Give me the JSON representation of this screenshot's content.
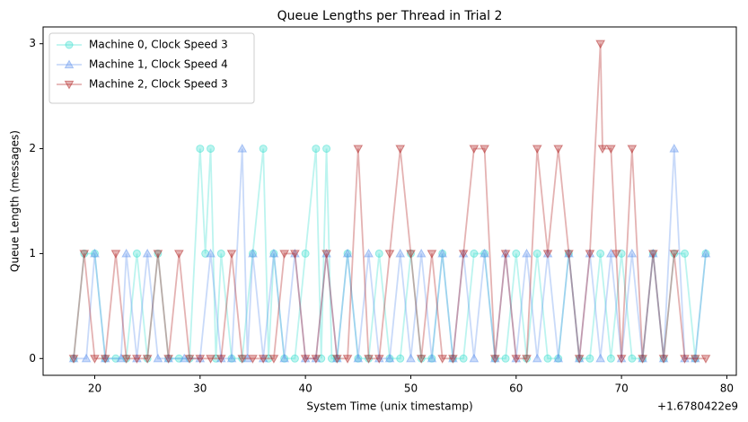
{
  "chart_data": {
    "type": "line",
    "title": "Queue Lengths per Thread in Trial 2",
    "x_label": "System Time (unix timestamp)",
    "y_label": "Queue Length (messages)",
    "x_offset_label": "+1.6780422e9",
    "xlim": [
      15.1,
      80.9
    ],
    "xticks": [
      20,
      30,
      40,
      50,
      60,
      70,
      80
    ],
    "ylim": [
      -0.16,
      3.16
    ],
    "yticks": [
      0,
      1,
      2,
      3
    ],
    "legend": "upper left",
    "series": [
      {
        "name": "Machine 0, Clock Speed 3",
        "color": "#40e0d0",
        "marker": "circle",
        "x": [
          18,
          19,
          20,
          21,
          22,
          23,
          24,
          25,
          26,
          27,
          28,
          29,
          30,
          30.5,
          31,
          31.5,
          32,
          33,
          34,
          35,
          36,
          36.5,
          37,
          38,
          39,
          40,
          41,
          41.5,
          42,
          42.5,
          43,
          44,
          45,
          46,
          47,
          48,
          49,
          50,
          51,
          52,
          53,
          54,
          55,
          56,
          57,
          58,
          59,
          60,
          61,
          62,
          63,
          64,
          65,
          66,
          67,
          68,
          69,
          70,
          71,
          72,
          73,
          74,
          75,
          76,
          77,
          78
        ],
        "values": [
          0,
          1,
          1,
          0,
          0,
          0,
          1,
          0,
          1,
          0,
          0,
          0,
          2,
          1,
          2,
          0,
          1,
          0,
          0,
          1,
          2,
          0,
          1,
          0,
          0,
          1,
          2,
          0,
          2,
          0,
          0,
          1,
          0,
          0,
          1,
          0,
          0,
          1,
          0,
          0,
          1,
          0,
          0,
          1,
          1,
          0,
          0,
          1,
          0,
          1,
          0,
          0,
          1,
          0,
          0,
          1,
          0,
          1,
          0,
          0,
          1,
          0,
          1,
          1,
          0,
          1
        ]
      },
      {
        "name": "Machine 1, Clock Speed 4",
        "color": "#6495ed",
        "marker": "triangle-up",
        "x": [
          18,
          19.2,
          20,
          21,
          22.5,
          23,
          24,
          25,
          26,
          27,
          28.5,
          30,
          31,
          32,
          33,
          34,
          34.5,
          35,
          36,
          37,
          38,
          39,
          40,
          41,
          42,
          43,
          44,
          45,
          46,
          47,
          48,
          49,
          50,
          51,
          52,
          53,
          54,
          55,
          56,
          57,
          58,
          59,
          60,
          61,
          62,
          63,
          64,
          65,
          66,
          67,
          68,
          69,
          70,
          71,
          72,
          73,
          74,
          75,
          76,
          77,
          78
        ],
        "values": [
          0,
          0,
          1,
          0,
          0,
          1,
          0,
          1,
          0,
          0,
          0,
          0,
          1,
          0,
          0,
          2,
          0,
          1,
          0,
          1,
          0,
          1,
          0,
          0,
          1,
          0,
          1,
          0,
          1,
          0,
          0,
          1,
          0,
          1,
          0,
          1,
          0,
          1,
          0,
          1,
          0,
          1,
          0,
          1,
          0,
          1,
          0,
          1,
          0,
          1,
          0,
          1,
          0,
          1,
          0,
          1,
          0,
          2,
          0,
          0,
          1
        ]
      },
      {
        "name": "Machine 2, Clock Speed 3",
        "color": "#b22222",
        "marker": "triangle-down",
        "x": [
          18,
          19,
          20,
          21,
          22,
          23,
          24,
          25,
          26,
          27,
          28,
          29,
          30,
          31,
          32,
          33,
          34,
          35,
          36,
          37,
          38,
          39,
          40,
          41,
          42,
          43,
          44,
          45,
          46,
          47,
          48,
          49,
          50,
          51,
          52,
          53,
          54,
          55,
          56,
          57,
          58,
          59,
          60,
          61,
          62,
          63,
          64,
          65,
          66,
          67,
          68,
          68.2,
          69,
          69.5,
          70,
          71,
          72,
          73,
          74,
          75,
          76,
          77,
          78
        ],
        "values": [
          0,
          1,
          0,
          0,
          1,
          0,
          0,
          0,
          1,
          0,
          1,
          0,
          0,
          0,
          0,
          1,
          0,
          0,
          0,
          0,
          1,
          1,
          0,
          0,
          1,
          0,
          0,
          2,
          0,
          0,
          1,
          2,
          1,
          0,
          1,
          0,
          0,
          1,
          2,
          2,
          0,
          1,
          0,
          0,
          2,
          1,
          2,
          1,
          0,
          1,
          3,
          2,
          2,
          1,
          0,
          2,
          0,
          1,
          0,
          1,
          0,
          0,
          0
        ]
      }
    ]
  }
}
